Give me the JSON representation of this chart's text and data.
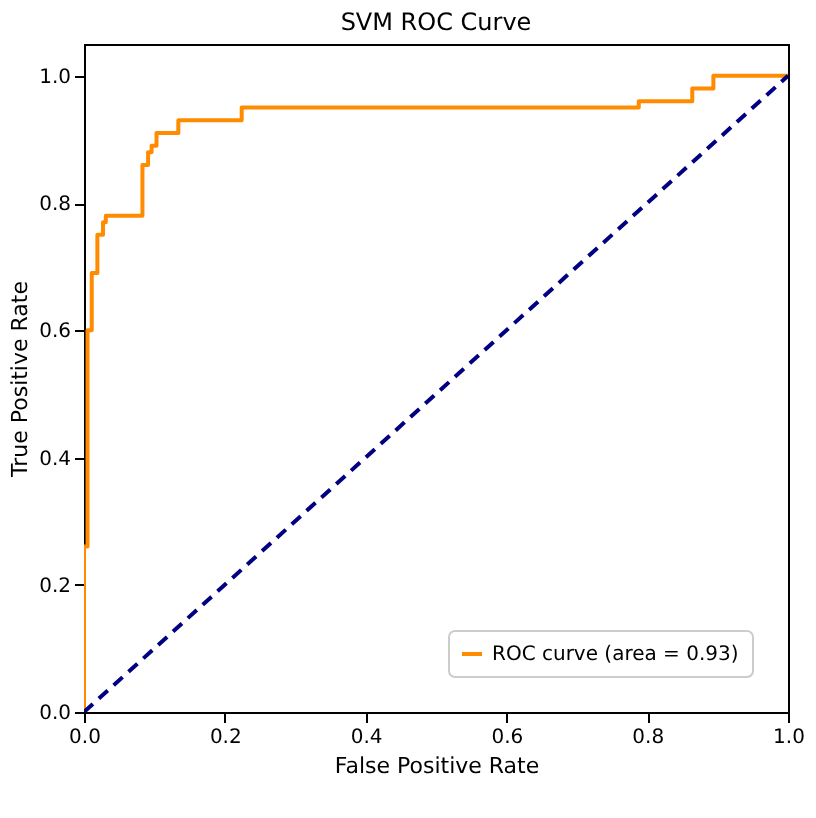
{
  "chart_data": {
    "type": "line",
    "title": "SVM ROC Curve",
    "xlabel": "False Positive Rate",
    "ylabel": "True Positive Rate",
    "xlim": [
      0,
      1
    ],
    "ylim": [
      0,
      1.05
    ],
    "xticks": [
      {
        "value": 0,
        "label": "0.0"
      },
      {
        "value": 0.2,
        "label": "0.2"
      },
      {
        "value": 0.4,
        "label": "0.4"
      },
      {
        "value": 0.6,
        "label": "0.6"
      },
      {
        "value": 0.8,
        "label": "0.8"
      },
      {
        "value": 1,
        "label": "1.0"
      }
    ],
    "yticks": [
      {
        "value": 0,
        "label": "0.0"
      },
      {
        "value": 0.2,
        "label": "0.2"
      },
      {
        "value": 0.4,
        "label": "0.4"
      },
      {
        "value": 0.6,
        "label": "0.6"
      },
      {
        "value": 0.8,
        "label": "0.8"
      },
      {
        "value": 1,
        "label": "1.0"
      }
    ],
    "grid": false,
    "legend": "bottom right",
    "series": [
      {
        "name": "ROC curve (area = 0.93)",
        "color": "#ff8c00",
        "line_style": "solid",
        "x": [
          0,
          0,
          0.005,
          0.005,
          0.011,
          0.011,
          0.019,
          0.019,
          0.027,
          0.027,
          0.031,
          0.031,
          0.083,
          0.083,
          0.091,
          0.091,
          0.096,
          0.096,
          0.103,
          0.103,
          0.134,
          0.134,
          0.224,
          0.224,
          0.788,
          0.788,
          0.864,
          0.864,
          0.894,
          0.894,
          1
        ],
        "values": [
          0,
          0.26,
          0.26,
          0.6,
          0.6,
          0.69,
          0.69,
          0.75,
          0.75,
          0.77,
          0.77,
          0.78,
          0.78,
          0.86,
          0.86,
          0.88,
          0.88,
          0.89,
          0.89,
          0.91,
          0.91,
          0.93,
          0.93,
          0.95,
          0.95,
          0.96,
          0.96,
          0.98,
          0.98,
          1,
          1
        ]
      },
      {
        "color": "#000080",
        "line_style": "dashed",
        "x": [
          0,
          1
        ],
        "values": [
          0,
          1
        ]
      }
    ]
  }
}
